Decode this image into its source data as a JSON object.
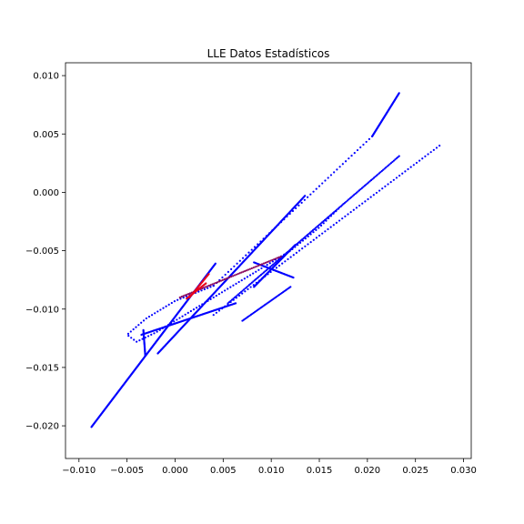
{
  "chart_data": {
    "type": "scatter",
    "title": "LLE Datos Estadísticos",
    "xlabel": "",
    "ylabel": "",
    "xlim": [
      -0.0114,
      0.0308
    ],
    "ylim": [
      -0.0228,
      0.0111
    ],
    "xticks": [
      -0.01,
      -0.005,
      0.0,
      0.005,
      0.01,
      0.015,
      0.02,
      0.025,
      0.03
    ],
    "xtick_labels": [
      "−0.010",
      "−0.005",
      "0.000",
      "0.005",
      "0.010",
      "0.015",
      "0.020",
      "0.025",
      "0.030"
    ],
    "yticks": [
      0.01,
      0.005,
      0.0,
      -0.005,
      -0.01,
      -0.015,
      -0.02
    ],
    "ytick_labels": [
      "0.010",
      "0.005",
      "0.000",
      "−0.005",
      "−0.010",
      "−0.015",
      "−0.020"
    ],
    "grid": false,
    "colors": {
      "primary": "#0000ff",
      "highlight": "#e8001a"
    },
    "series": [
      {
        "color": "#0000ff",
        "segments": [
          {
            "from": [
              -0.0087,
              -0.0201
            ],
            "to": [
              0.0042,
              -0.0061
            ],
            "n": 260
          },
          {
            "from": [
              -0.0018,
              -0.0138
            ],
            "to": [
              0.0135,
              -0.0003
            ],
            "n": 230
          },
          {
            "from": [
              -0.0035,
              -0.0122
            ],
            "to": [
              0.0063,
              -0.0095
            ],
            "n": 110
          },
          {
            "from": [
              -0.0033,
              -0.0118
            ],
            "to": [
              -0.0031,
              -0.014
            ],
            "n": 35
          },
          {
            "from": [
              0.0205,
              0.0048
            ],
            "to": [
              0.0233,
              0.0085
            ],
            "n": 70
          },
          {
            "from": [
              0.0082,
              -0.0081
            ],
            "to": [
              0.0125,
              -0.0045
            ],
            "n": 90
          },
          {
            "from": [
              0.0055,
              -0.0095
            ],
            "to": [
              0.0233,
              0.0031
            ],
            "n": 130
          },
          {
            "from": [
              0.004,
              -0.0105
            ],
            "to": [
              0.0275,
              0.004
            ],
            "n": 80
          },
          {
            "from": [
              0.007,
              -0.011
            ],
            "to": [
              0.012,
              -0.0081
            ],
            "n": 40
          },
          {
            "from": [
              0.0082,
              -0.006
            ],
            "to": [
              0.0123,
              -0.0073
            ],
            "n": 50
          },
          {
            "from": [
              0.004,
              -0.008
            ],
            "to": [
              0.0205,
              0.0048
            ],
            "n": 55
          }
        ]
      },
      {
        "color": "#0000ff",
        "curve": [
          [
            0.004,
            -0.008
          ],
          [
            0.0,
            -0.0093
          ],
          [
            -0.003,
            -0.0108
          ],
          [
            -0.005,
            -0.0122
          ],
          [
            -0.004,
            -0.0128
          ],
          [
            -0.002,
            -0.012
          ],
          [
            0.0,
            -0.011
          ],
          [
            0.003,
            -0.0095
          ],
          [
            0.006,
            -0.008
          ],
          [
            0.009,
            -0.0065
          ],
          [
            0.012,
            -0.005
          ],
          [
            0.015,
            -0.003
          ],
          [
            0.0175,
            -0.001
          ]
        ],
        "n": 110
      },
      {
        "color": "#8a0a5e",
        "segments": [
          {
            "from": [
              0.0005,
              -0.009
            ],
            "to": [
              0.011,
              -0.0055
            ],
            "n": 60
          }
        ]
      },
      {
        "color": "#e8001a",
        "segments": [
          {
            "from": [
              0.0012,
              -0.0091
            ],
            "to": [
              0.0032,
              -0.0078
            ],
            "n": 30
          },
          {
            "from": [
              0.0015,
              -0.009
            ],
            "to": [
              0.0035,
              -0.007
            ],
            "n": 30
          }
        ]
      }
    ]
  }
}
